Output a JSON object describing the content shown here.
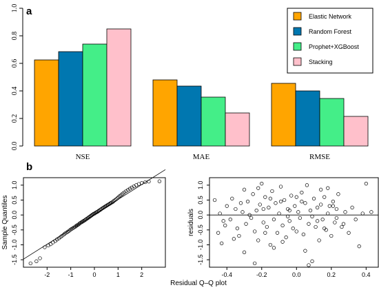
{
  "panels": {
    "a": "a",
    "b": "b"
  },
  "chart_data": [
    {
      "type": "bar",
      "categories": [
        "NSE",
        "MAE",
        "RMSE"
      ],
      "series": [
        {
          "name": "Elastic Network",
          "color": "#FFA500",
          "values": [
            0.625,
            0.48,
            0.455
          ]
        },
        {
          "name": "Random Forest",
          "color": "#0077B0",
          "values": [
            0.685,
            0.435,
            0.4
          ]
        },
        {
          "name": "Prophet+XGBoost",
          "color": "#44EE88",
          "values": [
            0.74,
            0.355,
            0.345
          ]
        },
        {
          "name": "Stacking",
          "color": "#FFC0CB",
          "values": [
            0.85,
            0.24,
            0.215
          ]
        }
      ],
      "ylim": [
        0,
        1.0
      ],
      "yticks": [
        "0.0",
        "0.2",
        "0.4",
        "0.6",
        "0.8",
        "1.0"
      ],
      "legend_position": "top-right"
    },
    {
      "type": "scatter",
      "xlabel": "Residual Q–Q plot",
      "ylabel": "Sample Quantiles",
      "xlim": [
        -3,
        3
      ],
      "ylim": [
        -1.75,
        1.25
      ],
      "xticks": [
        "-2",
        "-1",
        "0",
        "1",
        "2"
      ],
      "yticks": [
        "1.0",
        "0.5",
        "0.0",
        "-0.5",
        "-1.0",
        "-1.5"
      ],
      "reference_line": {
        "slope": 0.5,
        "intercept": 0.02
      },
      "points": [
        [
          -2.7,
          -1.62
        ],
        [
          -2.45,
          -1.55
        ],
        [
          -2.3,
          -1.45
        ],
        [
          -2.1,
          -1.08
        ],
        [
          -1.95,
          -1.02
        ],
        [
          -1.85,
          -0.98
        ],
        [
          -1.75,
          -0.92
        ],
        [
          -1.65,
          -0.87
        ],
        [
          -1.58,
          -0.82
        ],
        [
          -1.5,
          -0.78
        ],
        [
          -1.43,
          -0.74
        ],
        [
          -1.37,
          -0.7
        ],
        [
          -1.3,
          -0.66
        ],
        [
          -1.24,
          -0.62
        ],
        [
          -1.18,
          -0.59
        ],
        [
          -1.12,
          -0.56
        ],
        [
          -1.07,
          -0.53
        ],
        [
          -1.02,
          -0.5
        ],
        [
          -0.97,
          -0.47
        ],
        [
          -0.92,
          -0.45
        ],
        [
          -0.87,
          -0.42
        ],
        [
          -0.82,
          -0.4
        ],
        [
          -0.78,
          -0.37
        ],
        [
          -0.74,
          -0.35
        ],
        [
          -0.7,
          -0.33
        ],
        [
          -0.66,
          -0.31
        ],
        [
          -0.62,
          -0.28
        ],
        [
          -0.58,
          -0.26
        ],
        [
          -0.54,
          -0.24
        ],
        [
          -0.5,
          -0.22
        ],
        [
          -0.46,
          -0.2
        ],
        [
          -0.42,
          -0.18
        ],
        [
          -0.38,
          -0.16
        ],
        [
          -0.35,
          -0.14
        ],
        [
          -0.31,
          -0.12
        ],
        [
          -0.27,
          -0.1
        ],
        [
          -0.24,
          -0.08
        ],
        [
          -0.2,
          -0.06
        ],
        [
          -0.17,
          -0.04
        ],
        [
          -0.13,
          -0.02
        ],
        [
          -0.1,
          0.0
        ],
        [
          -0.06,
          0.02
        ],
        [
          -0.03,
          0.04
        ],
        [
          0.01,
          0.05
        ],
        [
          0.04,
          0.07
        ],
        [
          0.08,
          0.09
        ],
        [
          0.11,
          0.1
        ],
        [
          0.15,
          0.12
        ],
        [
          0.18,
          0.14
        ],
        [
          0.22,
          0.16
        ],
        [
          0.26,
          0.18
        ],
        [
          0.29,
          0.2
        ],
        [
          0.33,
          0.22
        ],
        [
          0.37,
          0.24
        ],
        [
          0.41,
          0.26
        ],
        [
          0.45,
          0.28
        ],
        [
          0.49,
          0.3
        ],
        [
          0.53,
          0.32
        ],
        [
          0.57,
          0.34
        ],
        [
          0.61,
          0.36
        ],
        [
          0.65,
          0.38
        ],
        [
          0.69,
          0.4
        ],
        [
          0.73,
          0.42
        ],
        [
          0.78,
          0.44
        ],
        [
          0.82,
          0.47
        ],
        [
          0.87,
          0.5
        ],
        [
          0.92,
          0.53
        ],
        [
          0.97,
          0.56
        ],
        [
          1.02,
          0.6
        ],
        [
          1.08,
          0.64
        ],
        [
          1.14,
          0.68
        ],
        [
          1.2,
          0.72
        ],
        [
          1.27,
          0.76
        ],
        [
          1.34,
          0.8
        ],
        [
          1.42,
          0.84
        ],
        [
          1.5,
          0.88
        ],
        [
          1.58,
          0.92
        ],
        [
          1.67,
          0.96
        ],
        [
          1.77,
          1.0
        ],
        [
          1.88,
          1.04
        ],
        [
          2.0,
          1.07
        ],
        [
          2.15,
          1.1
        ],
        [
          2.3,
          1.12
        ],
        [
          2.75,
          1.13
        ]
      ]
    },
    {
      "type": "scatter",
      "ylabel": "residuals",
      "xlim": [
        -0.5,
        0.47
      ],
      "ylim": [
        -1.75,
        1.25
      ],
      "xticks": [
        "-0.4",
        "-0.2",
        "0.0",
        "0.2",
        "0.4"
      ],
      "yticks": [
        "1.0",
        "0.5",
        "0.0",
        "-0.5",
        "-1.0",
        "-1.5"
      ],
      "hline": 0,
      "points": [
        [
          -0.47,
          0.5
        ],
        [
          -0.45,
          -0.6
        ],
        [
          -0.43,
          -0.95
        ],
        [
          -0.42,
          -0.2
        ],
        [
          -0.4,
          0.3
        ],
        [
          -0.38,
          -0.15
        ],
        [
          -0.37,
          0.55
        ],
        [
          -0.35,
          0.2
        ],
        [
          -0.34,
          -0.45
        ],
        [
          -0.33,
          -0.7
        ],
        [
          -0.31,
          0.1
        ],
        [
          -0.3,
          0.85
        ],
        [
          -0.29,
          -0.3
        ],
        [
          -0.28,
          0.45
        ],
        [
          -0.26,
          -0.1
        ],
        [
          -0.25,
          0.7
        ],
        [
          -0.24,
          -0.55
        ],
        [
          -0.23,
          0.15
        ],
        [
          -0.22,
          -0.85
        ],
        [
          -0.21,
          0.35
        ],
        [
          -0.2,
          1.05
        ],
        [
          -0.19,
          -0.25
        ],
        [
          -0.18,
          0.6
        ],
        [
          -0.17,
          -0.4
        ],
        [
          -0.16,
          0.25
        ],
        [
          -0.15,
          -1.0
        ],
        [
          -0.14,
          0.8
        ],
        [
          -0.13,
          -0.15
        ],
        [
          -0.12,
          0.4
        ],
        [
          -0.11,
          -0.6
        ],
        [
          -0.1,
          0.05
        ],
        [
          -0.09,
          0.95
        ],
        [
          -0.08,
          -0.35
        ],
        [
          -0.07,
          0.5
        ],
        [
          -0.06,
          -0.75
        ],
        [
          -0.05,
          0.2
        ],
        [
          -0.04,
          -0.2
        ],
        [
          -0.03,
          0.65
        ],
        [
          -0.02,
          -0.45
        ],
        [
          -0.01,
          0.3
        ],
        [
          0.0,
          -0.55
        ],
        [
          0.01,
          0.1
        ],
        [
          0.02,
          -0.1
        ],
        [
          0.03,
          0.75
        ],
        [
          0.04,
          -0.65
        ],
        [
          0.05,
          0.4
        ],
        [
          0.06,
          1.0
        ],
        [
          0.07,
          -0.3
        ],
        [
          0.08,
          0.15
        ],
        [
          0.09,
          -1.55
        ],
        [
          0.1,
          0.55
        ],
        [
          0.11,
          -0.4
        ],
        [
          0.12,
          0.25
        ],
        [
          0.13,
          -0.85
        ],
        [
          0.14,
          0.35
        ],
        [
          0.15,
          -0.15
        ],
        [
          0.16,
          0.6
        ],
        [
          0.17,
          -0.5
        ],
        [
          0.18,
          0.05
        ],
        [
          0.19,
          0.3
        ],
        [
          0.2,
          -0.7
        ],
        [
          0.21,
          0.45
        ],
        [
          0.22,
          -0.25
        ],
        [
          0.23,
          0.2
        ],
        [
          0.24,
          0.7
        ],
        [
          0.26,
          -0.4
        ],
        [
          0.28,
          0.1
        ],
        [
          0.3,
          -0.6
        ],
        [
          0.32,
          0.25
        ],
        [
          0.34,
          -0.15
        ],
        [
          0.36,
          -1.05
        ],
        [
          0.38,
          0.05
        ],
        [
          0.4,
          1.05
        ],
        [
          0.43,
          0.1
        ],
        [
          -0.44,
          0.05
        ],
        [
          -0.36,
          -0.8
        ],
        [
          -0.27,
          0.0
        ],
        [
          -0.18,
          -0.6
        ],
        [
          -0.09,
          0.45
        ],
        [
          0.0,
          0.6
        ],
        [
          0.09,
          -0.05
        ],
        [
          0.18,
          0.9
        ],
        [
          0.27,
          -0.3
        ],
        [
          -0.32,
          0.4
        ],
        [
          -0.22,
          0.9
        ],
        [
          -0.13,
          -1.1
        ],
        [
          -0.04,
          0.15
        ],
        [
          0.05,
          -1.2
        ],
        [
          0.14,
          0.85
        ],
        [
          0.23,
          -0.1
        ],
        [
          -0.41,
          -0.35
        ],
        [
          -0.3,
          -1.25
        ],
        [
          -0.19,
          0.2
        ],
        [
          -0.08,
          -0.9
        ],
        [
          0.03,
          0.45
        ],
        [
          0.12,
          -0.2
        ],
        [
          0.21,
          0.3
        ],
        [
          -0.24,
          -1.62
        ],
        [
          0.07,
          -1.68
        ],
        [
          -0.15,
          0.55
        ],
        [
          -0.05,
          -0.05
        ],
        [
          0.16,
          -0.45
        ]
      ]
    }
  ]
}
